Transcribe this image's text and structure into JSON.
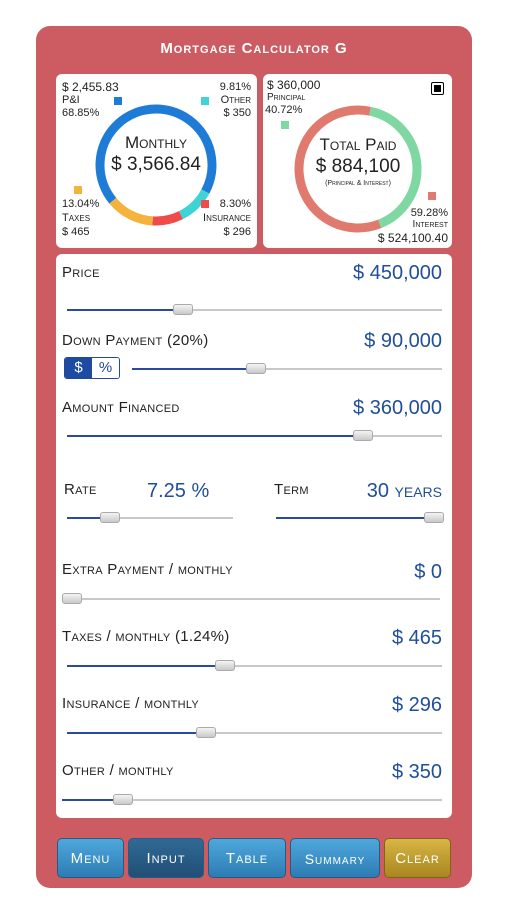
{
  "title": "Mortgage Calculator G",
  "colors": {
    "frame": "#cd5c62",
    "accent": "#1f4e9a",
    "pi": "#1e7bd6",
    "other": "#3fd3d6",
    "insurance": "#ef4b4b",
    "taxes": "#f3b33d",
    "principal": "#7fd7a2",
    "interest": "#e07a6e"
  },
  "left_summary": {
    "pi_amount": "$ 2,455.83",
    "pi_label": "P&I",
    "pi_percent": "68.85%",
    "pi_fraction": 0.6885,
    "other_percent": "9.81%",
    "other_label": "Other",
    "other_amount": "$ 350",
    "other_fraction": 0.0981,
    "taxes_percent": "13.04%",
    "taxes_label": "Taxes",
    "taxes_amount": "$ 465",
    "taxes_fraction": 0.1304,
    "insurance_percent": "8.30%",
    "insurance_label": "Insurance",
    "insurance_amount": "$ 296",
    "insurance_fraction": 0.083,
    "center_title": "Monthly",
    "center_value": "$ 3,566.84"
  },
  "right_summary": {
    "principal_amount": "$ 360,000",
    "principal_label": "Principal",
    "principal_percent": "40.72%",
    "principal_fraction": 0.4072,
    "interest_percent": "59.28%",
    "interest_label": "Interest",
    "interest_amount": "$ 524,100.40",
    "interest_fraction": 0.5928,
    "center_title": "Total Paid",
    "center_value": "$ 884,100",
    "center_sub": "(Principal & Interest)"
  },
  "inputs": {
    "price": {
      "label": "Price",
      "value": "$ 450,000",
      "level": 0.31
    },
    "down": {
      "label": "Down Payment (20%)",
      "value": "$ 90,000",
      "level": 0.4
    },
    "toggle": {
      "dollar": "$",
      "percent": "%"
    },
    "financed": {
      "label": "Amount Financed",
      "value": "$ 360,000",
      "level": 0.79
    },
    "rate": {
      "label": "Rate",
      "value": "7.25 %",
      "level": 0.26
    },
    "term": {
      "label": "Term",
      "value": "30 years",
      "level": 0.95
    },
    "extra": {
      "label": "Extra Payment / monthly",
      "value": "$ 0",
      "level": 0.0
    },
    "taxes": {
      "label": "Taxes / monthly (1.24%)",
      "value": "$ 465",
      "level": 0.42
    },
    "insurance": {
      "label": "Insurance / monthly",
      "value": "$ 296",
      "level": 0.37
    },
    "other": {
      "label": "Other / monthly",
      "value": "$ 350",
      "level": 0.16
    }
  },
  "tabs": [
    {
      "label": "Menu"
    },
    {
      "label": "Input"
    },
    {
      "label": "Table"
    },
    {
      "label": "Summary"
    },
    {
      "label": "Clear"
    }
  ]
}
